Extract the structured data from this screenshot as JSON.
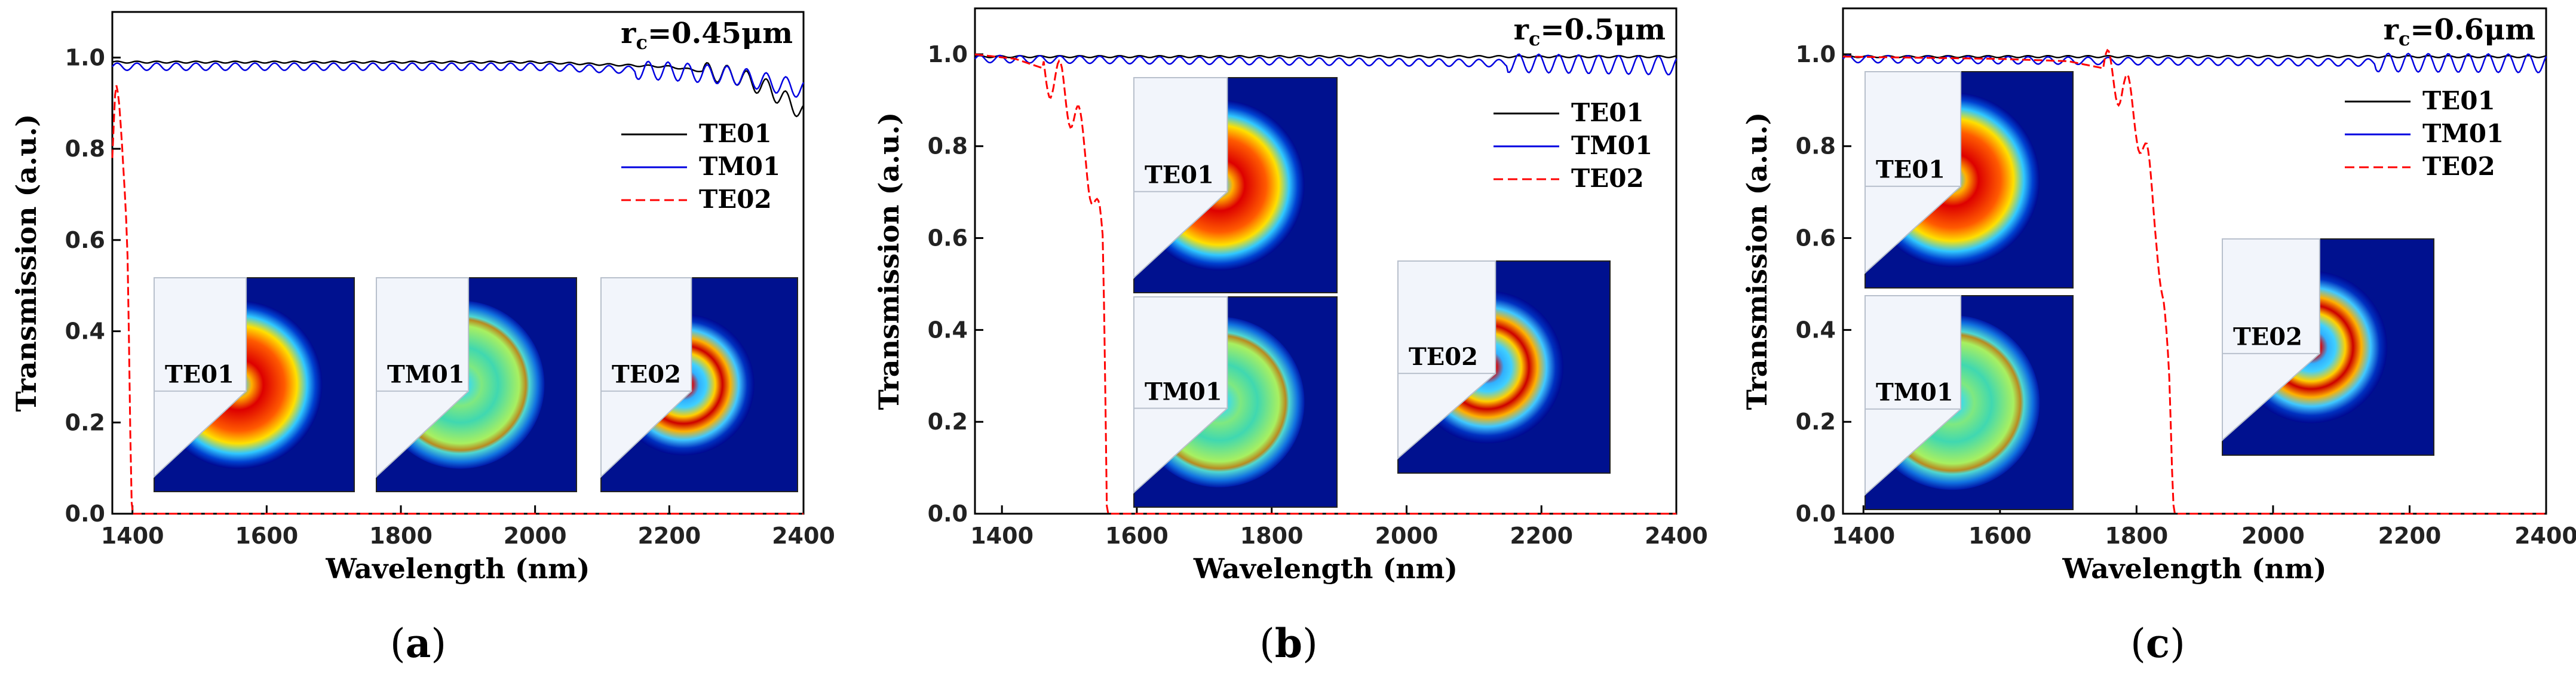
{
  "chart_data": [
    {
      "type": "line",
      "caption_letter": "a",
      "annotation_main": "r",
      "annotation_sub": "c",
      "annotation_value": "=0.45μm",
      "xlabel": "Wavelength (nm)",
      "ylabel": "Transmission (a.u.)",
      "xlim": [
        1370,
        2400
      ],
      "ylim": [
        0,
        1.1
      ],
      "xticks": [
        "1400",
        "1600",
        "1800",
        "2000",
        "2200",
        "2400"
      ],
      "yticks": [
        "0.0",
        "0.2",
        "0.4",
        "0.6",
        "0.8",
        "1.0"
      ],
      "legend": [
        "TE01",
        "TM01",
        "TE02"
      ],
      "series": [
        {
          "name": "TE01",
          "color": "#000000",
          "style": "solid",
          "x": [
            1370,
            1600,
            1800,
            2000,
            2100,
            2200,
            2300,
            2350,
            2400
          ],
          "y": [
            0.99,
            0.99,
            0.99,
            0.99,
            0.985,
            0.98,
            0.96,
            0.93,
            0.88
          ]
        },
        {
          "name": "TM01",
          "color": "#0000e0",
          "style": "solid",
          "x": [
            1370,
            1600,
            1800,
            2000,
            2200,
            2300,
            2400
          ],
          "y": [
            0.98,
            0.98,
            0.98,
            0.98,
            0.97,
            0.96,
            0.93
          ]
        },
        {
          "name": "TE02",
          "color": "#ff0000",
          "style": "dashed",
          "x": [
            1370,
            1375,
            1380,
            1385,
            1390,
            1393,
            1396,
            1398,
            1400,
            2400
          ],
          "y": [
            0.78,
            0.9,
            0.86,
            0.8,
            0.72,
            0.6,
            0.3,
            0.05,
            0.0,
            0.0
          ]
        }
      ],
      "insets": [
        "TE01",
        "TM01",
        "TE02"
      ]
    },
    {
      "type": "line",
      "caption_letter": "b",
      "annotation_main": "r",
      "annotation_sub": "c",
      "annotation_value": "=0.5μm",
      "xlabel": "Wavelength (nm)",
      "ylabel": "Transmission (a.u.)",
      "xlim": [
        1360,
        2400
      ],
      "ylim": [
        0,
        1.1
      ],
      "xticks": [
        "1400",
        "1600",
        "1800",
        "2000",
        "2200",
        "2400"
      ],
      "yticks": [
        "0.0",
        "0.2",
        "0.4",
        "0.6",
        "0.8",
        "1.0"
      ],
      "legend": [
        "TE01",
        "TM01",
        "TE02"
      ],
      "series": [
        {
          "name": "TE01",
          "color": "#000000",
          "style": "solid",
          "x": [
            1360,
            1800,
            2400
          ],
          "y": [
            0.995,
            0.995,
            0.995
          ]
        },
        {
          "name": "TM01",
          "color": "#0000e0",
          "style": "solid",
          "x": [
            1360,
            1800,
            2200,
            2400
          ],
          "y": [
            0.99,
            0.985,
            0.98,
            0.975
          ]
        },
        {
          "name": "TE02",
          "color": "#ff0000",
          "style": "dashed",
          "x": [
            1360,
            1420,
            1460,
            1490,
            1510,
            1525,
            1535,
            1545,
            1550,
            1553,
            1556,
            2400
          ],
          "y": [
            1.0,
            0.99,
            0.97,
            0.93,
            0.86,
            0.78,
            0.7,
            0.62,
            0.57,
            0.3,
            0.0,
            0.0
          ]
        }
      ],
      "insets": [
        "TE01",
        "TM01",
        "TE02"
      ]
    },
    {
      "type": "line",
      "caption_letter": "c",
      "annotation_main": "r",
      "annotation_sub": "c",
      "annotation_value": "=0.6μm",
      "xlabel": "Wavelength (nm)",
      "ylabel": "Transmission (a.u.)",
      "xlim": [
        1370,
        2400
      ],
      "ylim": [
        0,
        1.1
      ],
      "xticks": [
        "1400",
        "1600",
        "1800",
        "2000",
        "2200",
        "2400"
      ],
      "yticks": [
        "0.0",
        "0.2",
        "0.4",
        "0.6",
        "0.8",
        "1.0"
      ],
      "legend": [
        "TE01",
        "TM01",
        "TE02"
      ],
      "series": [
        {
          "name": "TE01",
          "color": "#000000",
          "style": "solid",
          "x": [
            1370,
            1800,
            2400
          ],
          "y": [
            0.995,
            0.995,
            0.995
          ]
        },
        {
          "name": "TM01",
          "color": "#0000e0",
          "style": "solid",
          "x": [
            1370,
            1800,
            2400
          ],
          "y": [
            0.99,
            0.985,
            0.98
          ]
        },
        {
          "name": "TE02",
          "color": "#ff0000",
          "style": "dashed",
          "x": [
            1370,
            1600,
            1700,
            1750,
            1780,
            1800,
            1815,
            1830,
            1840,
            1848,
            1852,
            1855,
            2400
          ],
          "y": [
            0.995,
            0.99,
            0.985,
            0.97,
            0.93,
            0.86,
            0.76,
            0.62,
            0.45,
            0.25,
            0.08,
            0.0,
            0.0
          ]
        }
      ],
      "insets": [
        "TE01",
        "TM01",
        "TE02"
      ]
    }
  ]
}
